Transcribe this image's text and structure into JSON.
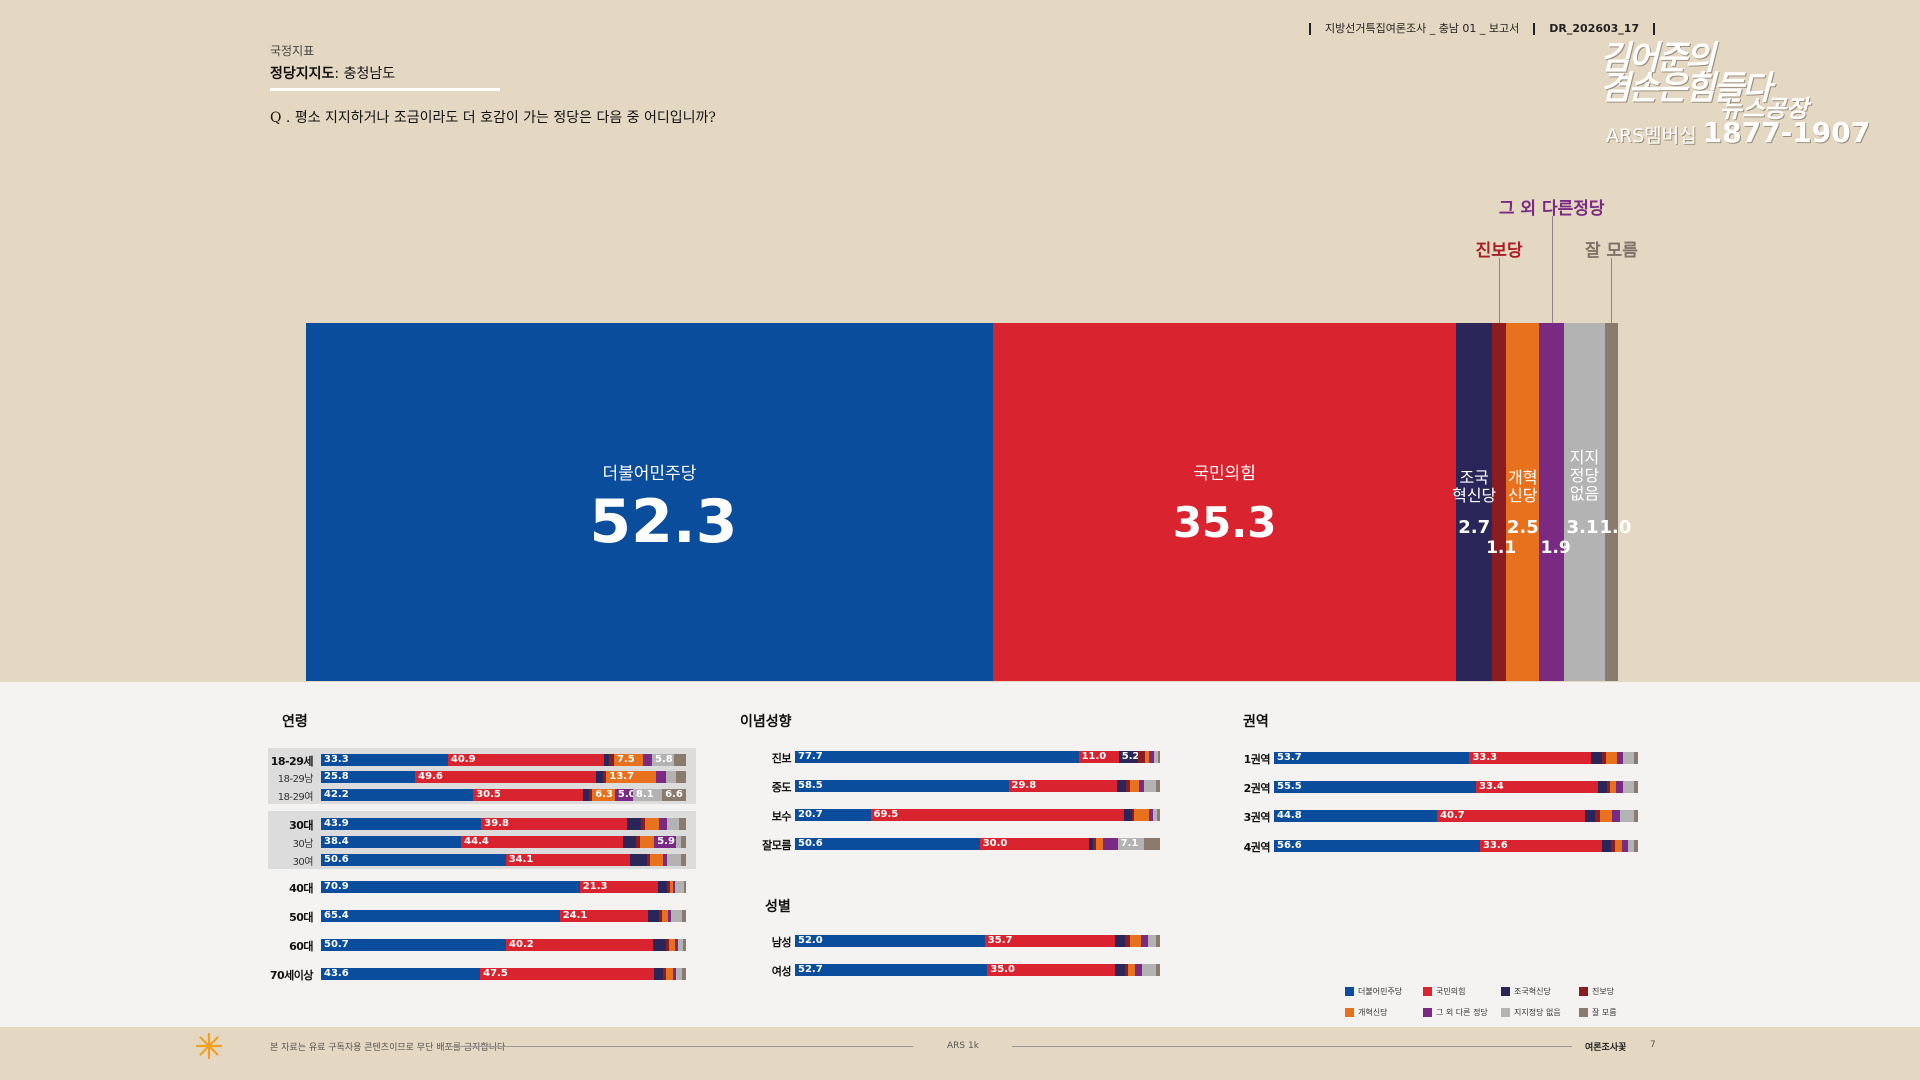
{
  "header": {
    "category": "국정지표",
    "title_bold": "정당지지도",
    "title_rest": ": 충청남도",
    "question": "Q . 평소 지지하거나 조금이라도 더 호감이 가는 정당은 다음 중 어디입니까?",
    "meta_survey": "지방선거특집여론조사 _ 충남 01 _ 보고서",
    "meta_code": "DR_202603_17"
  },
  "logo": {
    "line1": "김어준의",
    "line2": "겸손은힘들다",
    "line3": "뉴스공장",
    "ars_label": "ARS멤버십",
    "ars_number": "1877-1907"
  },
  "colors": {
    "dem": "#0a4d9c",
    "ppp": "#d9232e",
    "jokuk": "#2b2659",
    "jinbo": "#8b1c22",
    "gaehyuk": "#e8711d",
    "other": "#7a2a82",
    "none": "#b3b3b3",
    "dunno": "#8a7b6e"
  },
  "chart_data": [
    {
      "type": "bar",
      "title": "정당지지도: 충청남도",
      "stacked": true,
      "series": [
        {
          "key": "dem",
          "name": "더불어민주당",
          "value": 52.3
        },
        {
          "key": "ppp",
          "name": "국민의힘",
          "value": 35.3
        },
        {
          "key": "jokuk",
          "name": "조국혁신당",
          "value": 2.7
        },
        {
          "key": "jinbo",
          "name": "진보당",
          "value": 1.1
        },
        {
          "key": "gaehyuk",
          "name": "개혁신당",
          "value": 2.5
        },
        {
          "key": "other",
          "name": "그 외 다른정당",
          "value": 1.9
        },
        {
          "key": "none",
          "name": "지지정당 없음",
          "value": 3.1
        },
        {
          "key": "dunno",
          "name": "잘 모름",
          "value": 1.0
        }
      ],
      "display_labels": {
        "dem": "더불어민주당",
        "ppp": "국민의힘",
        "jokuk": "조국\n혁신당",
        "gaehyuk": "개혁\n신당",
        "none": "지지\n정당\n없음",
        "jinbo_callout": "진보당",
        "other_callout": "그 외 다른정당",
        "dunno_callout": "잘 모름"
      }
    }
  ],
  "breakdown": {
    "age": {
      "title": "연령",
      "rows": [
        {
          "label": "18-29세",
          "sub": false,
          "values": {
            "dem": 33.3,
            "ppp": 40.9,
            "jokuk": 1.5,
            "jinbo": 1.2,
            "gaehyuk": 7.5,
            "other": 2.5,
            "none": 5.8,
            "dunno": 3.1
          },
          "shown": {
            "dem": "33.3",
            "ppp": "40.9",
            "gaehyuk": "7.5",
            "none": "5.8"
          }
        },
        {
          "label": "18-29남",
          "sub": true,
          "values": {
            "dem": 25.8,
            "ppp": 49.6,
            "jokuk": 1.8,
            "jinbo": 1.0,
            "gaehyuk": 13.7,
            "other": 2.5,
            "none": 3.0,
            "dunno": 2.6
          },
          "shown": {
            "dem": "25.8",
            "ppp": "49.6",
            "gaehyuk": "13.7"
          }
        },
        {
          "label": "18-29여",
          "sub": true,
          "values": {
            "dem": 42.2,
            "ppp": 30.5,
            "jokuk": 1.5,
            "jinbo": 1.0,
            "gaehyuk": 6.3,
            "other": 5.0,
            "none": 8.1,
            "dunno": 6.6
          },
          "shown": {
            "dem": "42.2",
            "ppp": "30.5",
            "gaehyuk": "6.3",
            "other": "5.0",
            "none": "8.1",
            "dunno": "6.6"
          }
        },
        {
          "label": "30대",
          "sub": false,
          "values": {
            "dem": 43.9,
            "ppp": 39.8,
            "jokuk": 4.0,
            "jinbo": 1.0,
            "gaehyuk": 4.0,
            "other": 2.0,
            "none": 3.5,
            "dunno": 1.8
          },
          "shown": {
            "dem": "43.9",
            "ppp": "39.8"
          }
        },
        {
          "label": "30남",
          "sub": true,
          "values": {
            "dem": 38.4,
            "ppp": 44.4,
            "jokuk": 3.5,
            "jinbo": 1.0,
            "gaehyuk": 4.0,
            "other": 5.9,
            "none": 1.5,
            "dunno": 1.3
          },
          "shown": {
            "dem": "38.4",
            "ppp": "44.4",
            "other": "5.9"
          }
        },
        {
          "label": "30여",
          "sub": true,
          "values": {
            "dem": 50.6,
            "ppp": 34.1,
            "jokuk": 4.5,
            "jinbo": 1.0,
            "gaehyuk": 3.5,
            "other": 1.0,
            "none": 4.0,
            "dunno": 1.3
          },
          "shown": {
            "dem": "50.6",
            "ppp": "34.1"
          }
        },
        {
          "label": "40대",
          "sub": false,
          "values": {
            "dem": 70.9,
            "ppp": 21.3,
            "jokuk": 2.5,
            "jinbo": 1.0,
            "gaehyuk": 0.8,
            "other": 0.5,
            "none": 2.5,
            "dunno": 0.5
          },
          "shown": {
            "dem": "70.9",
            "ppp": "21.3"
          }
        },
        {
          "label": "50대",
          "sub": false,
          "values": {
            "dem": 65.4,
            "ppp": 24.1,
            "jokuk": 3.0,
            "jinbo": 1.0,
            "gaehyuk": 1.5,
            "other": 1.0,
            "none": 3.0,
            "dunno": 1.0
          },
          "shown": {
            "dem": "65.4",
            "ppp": "24.1"
          }
        },
        {
          "label": "60대",
          "sub": false,
          "values": {
            "dem": 50.7,
            "ppp": 40.2,
            "jokuk": 3.5,
            "jinbo": 1.0,
            "gaehyuk": 1.5,
            "other": 0.8,
            "none": 1.5,
            "dunno": 0.8
          },
          "shown": {
            "dem": "50.7",
            "ppp": "40.2"
          }
        },
        {
          "label": "70세이상",
          "sub": false,
          "values": {
            "dem": 43.6,
            "ppp": 47.5,
            "jokuk": 2.5,
            "jinbo": 1.0,
            "gaehyuk": 1.8,
            "other": 1.0,
            "none": 1.6,
            "dunno": 1.0
          },
          "shown": {
            "dem": "43.6",
            "ppp": "47.5"
          }
        }
      ]
    },
    "ideology": {
      "title": "이념성향",
      "rows": [
        {
          "label": "진보",
          "values": {
            "dem": 77.7,
            "ppp": 11.0,
            "jokuk": 5.2,
            "jinbo": 2.0,
            "gaehyuk": 1.0,
            "other": 1.5,
            "none": 1.0,
            "dunno": 0.6
          },
          "shown": {
            "dem": "77.7",
            "ppp": "11.0",
            "jokuk": "5.2"
          }
        },
        {
          "label": "중도",
          "values": {
            "dem": 58.5,
            "ppp": 29.8,
            "jokuk": 2.5,
            "jinbo": 1.0,
            "gaehyuk": 2.5,
            "other": 1.2,
            "none": 3.5,
            "dunno": 1.0
          },
          "shown": {
            "dem": "58.5",
            "ppp": "29.8"
          }
        },
        {
          "label": "보수",
          "values": {
            "dem": 20.7,
            "ppp": 69.5,
            "jokuk": 2.0,
            "jinbo": 0.8,
            "gaehyuk": 4.0,
            "other": 1.0,
            "none": 1.2,
            "dunno": 0.8
          },
          "shown": {
            "dem": "20.7",
            "ppp": "69.5"
          }
        },
        {
          "label": "잘모름",
          "values": {
            "dem": 50.6,
            "ppp": 30.0,
            "jokuk": 1.0,
            "jinbo": 0.8,
            "gaehyuk": 2.0,
            "other": 4.0,
            "none": 7.1,
            "dunno": 4.5
          },
          "shown": {
            "dem": "50.6",
            "ppp": "30.0",
            "none": "7.1"
          }
        }
      ]
    },
    "gender": {
      "title": "성별",
      "rows": [
        {
          "label": "남성",
          "values": {
            "dem": 52.0,
            "ppp": 35.7,
            "jokuk": 2.8,
            "jinbo": 1.2,
            "gaehyuk": 3.2,
            "other": 1.8,
            "none": 2.3,
            "dunno": 1.0
          },
          "shown": {
            "dem": "52.0",
            "ppp": "35.7"
          }
        },
        {
          "label": "여성",
          "values": {
            "dem": 52.7,
            "ppp": 35.0,
            "jokuk": 2.6,
            "jinbo": 1.0,
            "gaehyuk": 1.8,
            "other": 2.0,
            "none": 3.9,
            "dunno": 1.0
          },
          "shown": {
            "dem": "52.7",
            "ppp": "35.0"
          }
        }
      ]
    },
    "region": {
      "title": "권역",
      "rows": [
        {
          "label": "1권역",
          "values": {
            "dem": 53.7,
            "ppp": 33.3,
            "jokuk": 3.0,
            "jinbo": 1.2,
            "gaehyuk": 3.0,
            "other": 1.8,
            "none": 3.0,
            "dunno": 1.0
          },
          "shown": {
            "dem": "53.7",
            "ppp": "33.3"
          }
        },
        {
          "label": "2권역",
          "values": {
            "dem": 55.5,
            "ppp": 33.4,
            "jokuk": 2.5,
            "jinbo": 1.0,
            "gaehyuk": 1.5,
            "other": 2.0,
            "none": 3.1,
            "dunno": 1.0
          },
          "shown": {
            "dem": "55.5",
            "ppp": "33.4"
          }
        },
        {
          "label": "3권역",
          "values": {
            "dem": 44.8,
            "ppp": 40.7,
            "jokuk": 2.8,
            "jinbo": 1.2,
            "gaehyuk": 3.5,
            "other": 2.0,
            "none": 4.0,
            "dunno": 1.0
          },
          "shown": {
            "dem": "44.8",
            "ppp": "40.7"
          }
        },
        {
          "label": "4권역",
          "values": {
            "dem": 56.6,
            "ppp": 33.6,
            "jokuk": 2.5,
            "jinbo": 1.0,
            "gaehyuk": 1.8,
            "other": 1.8,
            "none": 1.7,
            "dunno": 1.0
          },
          "shown": {
            "dem": "56.6",
            "ppp": "33.6"
          }
        }
      ]
    }
  },
  "legend": [
    {
      "key": "dem",
      "label": "더불어민주당"
    },
    {
      "key": "ppp",
      "label": "국민의힘"
    },
    {
      "key": "jokuk",
      "label": "조국혁신당"
    },
    {
      "key": "jinbo",
      "label": "진보당"
    },
    {
      "key": "gaehyuk",
      "label": "개혁신당"
    },
    {
      "key": "other",
      "label": "그 외 다른 정당"
    },
    {
      "key": "none",
      "label": "지지정당 없음"
    },
    {
      "key": "dunno",
      "label": "잘 모름"
    }
  ],
  "footer": {
    "notice": "본 자료는 유료 구독자용 콘텐츠이므로 무단 배포를 금지합니다",
    "center": "ARS 1k",
    "right": "여론조사꽃",
    "page": "7"
  }
}
